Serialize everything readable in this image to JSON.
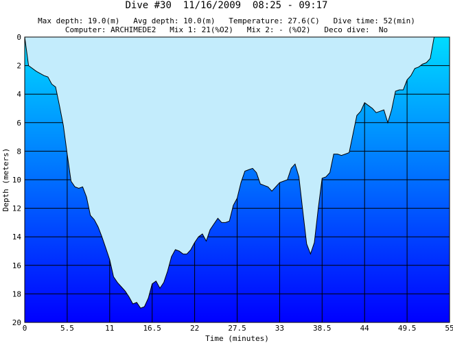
{
  "header": {
    "title": "Dive #30  11/16/2009  08:25 - 09:17",
    "line1": "Max depth: 19.0(m)   Avg depth: 10.0(m)   Temperature: 27.6(C)   Dive time: 52(min)",
    "line2": "Computer: ARCHIMEDE2   Mix 1: 21(%O2)   Mix 2: - (%O2)   Deco dive:  No"
  },
  "colors": {
    "gradient_top": "#00dcff",
    "gradient_bottom": "#0000ff",
    "fill_above": "#c3ecfc",
    "grid": "#000000"
  },
  "chart_data": {
    "type": "area",
    "title": "",
    "xlabel": "Time (minutes)",
    "ylabel": "Depth (meters)",
    "xlim": [
      0,
      55
    ],
    "ylim": [
      0,
      20
    ],
    "y_inverted": true,
    "grid": true,
    "x_ticks": [
      "0",
      "5.5",
      "11",
      "16.5",
      "22",
      "27.5",
      "33",
      "38.5",
      "44",
      "49.5",
      "55"
    ],
    "y_ticks": [
      "0",
      "2",
      "4",
      "6",
      "8",
      "10",
      "12",
      "14",
      "16",
      "18",
      "20"
    ],
    "series": [
      {
        "x": [
          0,
          0.5,
          1.5,
          2.5,
          3,
          3.5,
          4,
          4.5,
          5,
          5.5,
          6,
          6.5,
          7,
          7.5,
          8,
          8.5,
          9,
          9.5,
          10,
          10.5,
          11,
          11.5,
          12,
          12.5,
          13,
          13.5,
          14,
          14.5,
          15,
          15.5,
          16,
          16.5,
          17,
          17.5,
          18,
          18.5,
          19,
          19.5,
          20,
          20.5,
          21,
          21.5,
          22,
          22.5,
          23,
          23.5,
          24,
          24.5,
          25,
          25.5,
          26,
          26.5,
          27,
          27.5,
          28,
          28.5,
          29,
          29.5,
          30,
          30.5,
          31,
          31.5,
          32,
          32.5,
          33,
          33.5,
          34,
          34.5,
          35,
          35.5,
          36,
          36.5,
          37,
          37.5,
          38,
          38.5,
          39,
          39.5,
          40,
          40.5,
          41,
          41.5,
          42,
          42.5,
          43,
          43.5,
          44,
          44.5,
          45,
          45.5,
          46,
          46.5,
          47,
          47.5,
          48,
          48.5,
          49,
          49.5,
          50,
          50.5,
          51,
          51.5,
          52,
          52.5,
          53
        ],
        "y": [
          0,
          2,
          2.4,
          2.7,
          2.8,
          3.3,
          3.5,
          4.8,
          6.2,
          8.2,
          10.1,
          10.5,
          10.6,
          10.5,
          11.2,
          12.5,
          12.8,
          13.3,
          14.0,
          14.8,
          15.6,
          16.8,
          17.2,
          17.5,
          17.8,
          18.2,
          18.7,
          18.6,
          19.0,
          18.9,
          18.3,
          17.3,
          17.1,
          17.6,
          17.2,
          16.4,
          15.4,
          14.9,
          15.0,
          15.2,
          15.2,
          14.9,
          14.4,
          14.0,
          13.8,
          14.3,
          13.5,
          13.1,
          12.7,
          13.0,
          13.0,
          12.9,
          11.8,
          11.3,
          10.2,
          9.4,
          9.3,
          9.2,
          9.5,
          10.3,
          10.4,
          10.5,
          10.8,
          10.5,
          10.2,
          10.1,
          10.0,
          9.2,
          8.9,
          9.8,
          12.2,
          14.5,
          15.2,
          14.4,
          12.0,
          9.9,
          9.8,
          9.5,
          8.2,
          8.2,
          8.3,
          8.2,
          8.1,
          6.8,
          5.5,
          5.2,
          4.6,
          4.8,
          5.0,
          5.3,
          5.2,
          5.1,
          6.0,
          5.1,
          3.8,
          3.7,
          3.7,
          3.0,
          2.7,
          2.2,
          2.1,
          1.9,
          1.8,
          1.5,
          0
        ]
      }
    ]
  }
}
